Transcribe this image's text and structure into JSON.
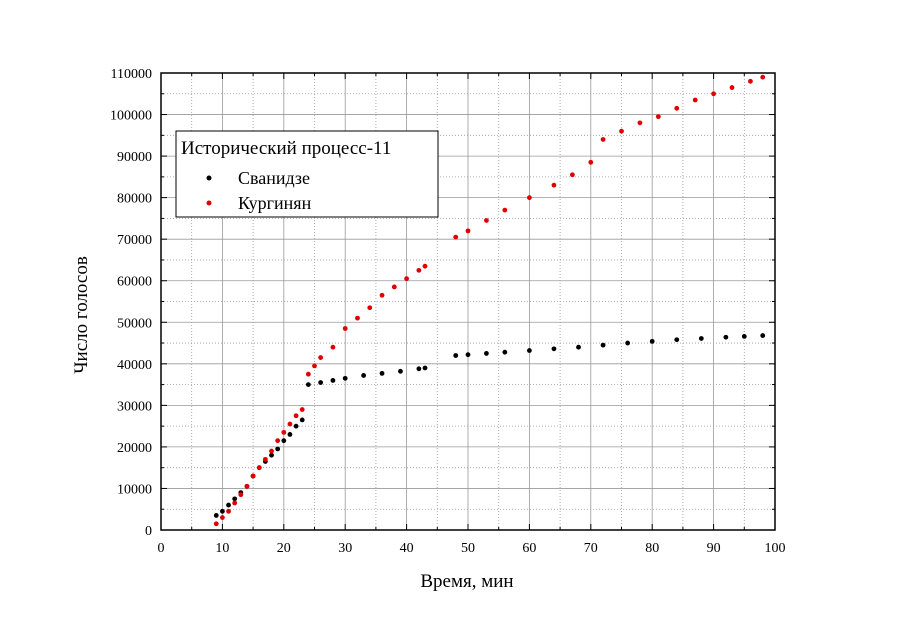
{
  "chart_data": {
    "type": "scatter",
    "title": "",
    "xlabel": "Время, мин",
    "ylabel": "Число голосов",
    "xlim": [
      0,
      100
    ],
    "ylim": [
      0,
      110000
    ],
    "xticks": [
      0,
      10,
      20,
      30,
      40,
      50,
      60,
      70,
      80,
      90,
      100
    ],
    "yticks": [
      0,
      10000,
      20000,
      30000,
      40000,
      50000,
      60000,
      70000,
      80000,
      90000,
      100000,
      110000
    ],
    "grid": true,
    "legend": {
      "title": "Исторический процесс-11",
      "placement": "top-left"
    },
    "series": [
      {
        "name": "Сванидзе",
        "color": "#000000",
        "points": [
          [
            9,
            3500
          ],
          [
            10,
            4500
          ],
          [
            11,
            6000
          ],
          [
            12,
            7500
          ],
          [
            13,
            9000
          ],
          [
            14,
            10500
          ],
          [
            15,
            13000
          ],
          [
            16,
            15000
          ],
          [
            17,
            16500
          ],
          [
            18,
            18000
          ],
          [
            19,
            19500
          ],
          [
            20,
            21500
          ],
          [
            21,
            23000
          ],
          [
            22,
            25000
          ],
          [
            23,
            26500
          ],
          [
            24,
            35000
          ],
          [
            26,
            35500
          ],
          [
            28,
            36000
          ],
          [
            30,
            36500
          ],
          [
            33,
            37200
          ],
          [
            36,
            37700
          ],
          [
            39,
            38200
          ],
          [
            42,
            38800
          ],
          [
            43,
            39000
          ],
          [
            48,
            42000
          ],
          [
            50,
            42200
          ],
          [
            53,
            42500
          ],
          [
            56,
            42800
          ],
          [
            60,
            43200
          ],
          [
            64,
            43600
          ],
          [
            68,
            44000
          ],
          [
            72,
            44500
          ],
          [
            76,
            45000
          ],
          [
            80,
            45400
          ],
          [
            84,
            45800
          ],
          [
            88,
            46100
          ],
          [
            92,
            46400
          ],
          [
            95,
            46600
          ],
          [
            98,
            46800
          ]
        ]
      },
      {
        "name": "Кургинян",
        "color": "#e00000",
        "points": [
          [
            9,
            1500
          ],
          [
            10,
            3000
          ],
          [
            11,
            4500
          ],
          [
            12,
            6500
          ],
          [
            13,
            8500
          ],
          [
            14,
            10500
          ],
          [
            15,
            13000
          ],
          [
            16,
            15000
          ],
          [
            17,
            17000
          ],
          [
            18,
            19000
          ],
          [
            19,
            21500
          ],
          [
            20,
            23500
          ],
          [
            21,
            25500
          ],
          [
            22,
            27500
          ],
          [
            23,
            29000
          ],
          [
            24,
            37500
          ],
          [
            25,
            39500
          ],
          [
            26,
            41500
          ],
          [
            28,
            44000
          ],
          [
            30,
            48500
          ],
          [
            32,
            51000
          ],
          [
            34,
            53500
          ],
          [
            36,
            56500
          ],
          [
            38,
            58500
          ],
          [
            40,
            60500
          ],
          [
            42,
            62500
          ],
          [
            43,
            63500
          ],
          [
            48,
            70500
          ],
          [
            50,
            72000
          ],
          [
            53,
            74500
          ],
          [
            56,
            77000
          ],
          [
            60,
            80000
          ],
          [
            64,
            83000
          ],
          [
            67,
            85500
          ],
          [
            70,
            88500
          ],
          [
            72,
            94000
          ],
          [
            75,
            96000
          ],
          [
            78,
            98000
          ],
          [
            81,
            99500
          ],
          [
            84,
            101500
          ],
          [
            87,
            103500
          ],
          [
            90,
            105000
          ],
          [
            93,
            106500
          ],
          [
            96,
            108000
          ],
          [
            98,
            109000
          ]
        ]
      }
    ]
  }
}
